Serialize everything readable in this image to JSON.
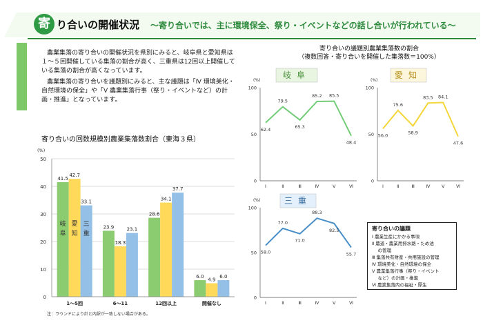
{
  "header": {
    "badge_char": "寄",
    "title": "り合いの開催状況",
    "subtitle": "～寄り合いでは、主に環境保全、祭り・イベントなどの話し合いが行われている～"
  },
  "intro": {
    "paragraph1": "農業集落の寄り合いの開催状況を県別にみると、岐阜県と愛知県は１～５回開催している集落の割合が高く、三重県は12回以上開催している集落の割合が高くなっています。",
    "paragraph2": "農業集落の寄り合いを議題別にみると、主な議題は「Ⅳ 環境美化・自然環境の保全」や「Ⅴ 農業集落行事（祭り・イベントなど）の計画・推進」となっています。"
  },
  "bar_chart": {
    "title": "寄り合いの回数規模別農業集落数割合（東海３県）",
    "note": "注：ラウンドにより計と内訳が一致しない場合がある。",
    "series_labels": [
      "岐\n阜",
      "愛\n知",
      "三\n重"
    ]
  },
  "right_panel": {
    "title_line1": "寄り合いの議題別農業集落数の割合",
    "title_line2": "（複数回答・寄り合いを開催した集落数＝100%）"
  },
  "legend": {
    "title": "寄り合いの議題",
    "items": [
      "Ⅰ 農業生産にかかる事項",
      "Ⅱ 農道・農業用排水路・ため池",
      "　 の管理",
      "Ⅲ 集落共有財産・共用施設の管理",
      "Ⅳ 環境美化・自然環境の保全",
      "Ⅴ 農業集落行事（祭り・イベント",
      "　 など）の計画・推進",
      "Ⅵ 農業集落内の福祉・厚生"
    ]
  },
  "chart_data": [
    {
      "type": "bar",
      "title": "寄り合いの回数規模別農業集落数割合（東海３県）",
      "ylabel": "(%)",
      "ylim": [
        0,
        50
      ],
      "yticks": [
        0,
        10,
        20,
        30,
        40,
        50
      ],
      "categories": [
        "1～5回",
        "6～11",
        "12回以上",
        "開催なし"
      ],
      "series": [
        {
          "name": "岐阜",
          "values": [
            41.5,
            23.9,
            28.6,
            6.0
          ],
          "color": "#8ccc70"
        },
        {
          "name": "愛知",
          "values": [
            42.7,
            18.3,
            34.1,
            4.9
          ],
          "color": "#ffd95a"
        },
        {
          "name": "三重",
          "values": [
            33.1,
            23.1,
            37.7,
            6.0
          ],
          "color": "#94c0e8"
        }
      ]
    },
    {
      "type": "line",
      "title": "岐阜",
      "ylabel": "(%)",
      "ylim": [
        0,
        100
      ],
      "yticks": [
        0,
        50,
        100
      ],
      "categories": [
        "Ⅰ",
        "Ⅱ",
        "Ⅲ",
        "Ⅳ",
        "Ⅴ",
        "Ⅵ"
      ],
      "series": [
        {
          "name": "岐阜",
          "values": [
            62.4,
            79.5,
            65.3,
            85.2,
            85.5,
            48.4
          ],
          "color": "#72cc78"
        }
      ]
    },
    {
      "type": "line",
      "title": "愛知",
      "ylabel": "(%)",
      "ylim": [
        0,
        100
      ],
      "yticks": [
        0,
        50,
        100
      ],
      "categories": [
        "Ⅰ",
        "Ⅱ",
        "Ⅲ",
        "Ⅳ",
        "Ⅴ",
        "Ⅵ"
      ],
      "series": [
        {
          "name": "愛知",
          "values": [
            56.0,
            75.6,
            58.9,
            83.5,
            84.1,
            47.6
          ],
          "color": "#f4d63a"
        }
      ]
    },
    {
      "type": "line",
      "title": "三重",
      "ylabel": "(%)",
      "ylim": [
        0,
        100
      ],
      "yticks": [
        0,
        50,
        100
      ],
      "categories": [
        "Ⅰ",
        "Ⅱ",
        "Ⅲ",
        "Ⅳ",
        "Ⅴ",
        "Ⅵ"
      ],
      "series": [
        {
          "name": "三重",
          "values": [
            58.0,
            77.0,
            71.0,
            88.3,
            82.5,
            55.7
          ],
          "color": "#4a8fc8"
        }
      ]
    }
  ]
}
